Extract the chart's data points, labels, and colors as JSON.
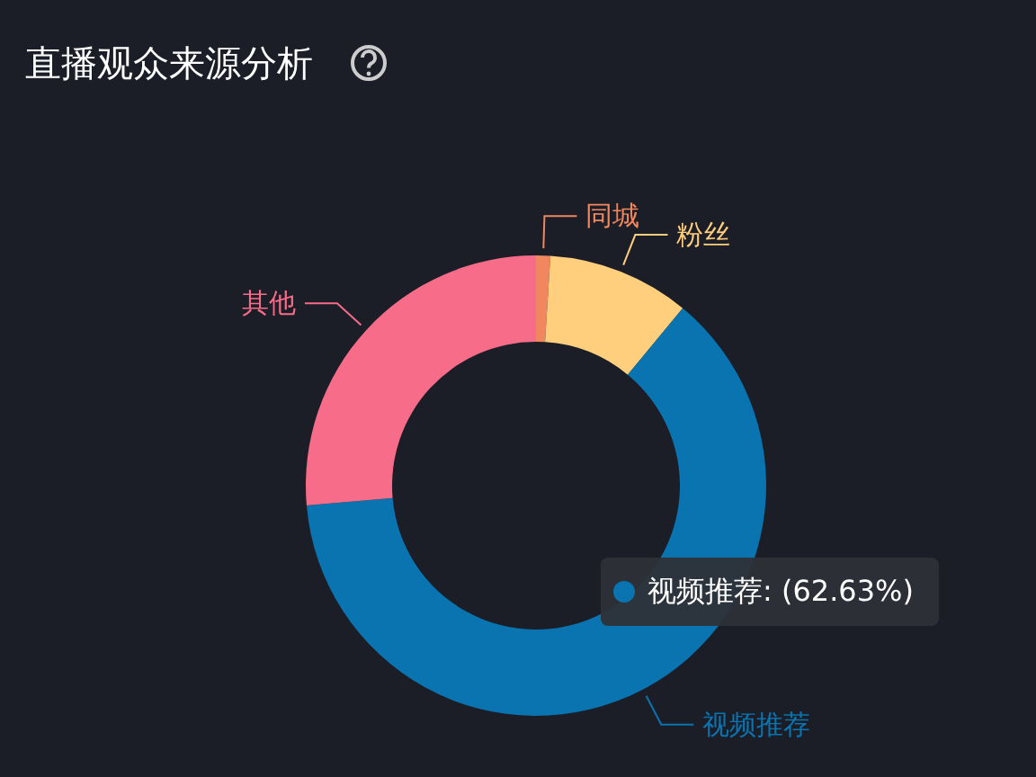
{
  "chart_data": {
    "type": "donut",
    "title": "直播观众来源分析",
    "categories": [
      "同城",
      "粉丝",
      "视频推荐",
      "其他"
    ],
    "values": [
      1.0,
      10.0,
      62.63,
      26.37
    ],
    "colors": [
      "#f0875f",
      "#ffcf7d",
      "#0a74b0",
      "#f76c88"
    ],
    "annotations": [
      "视频推荐: (62.63%)"
    ]
  }
}
